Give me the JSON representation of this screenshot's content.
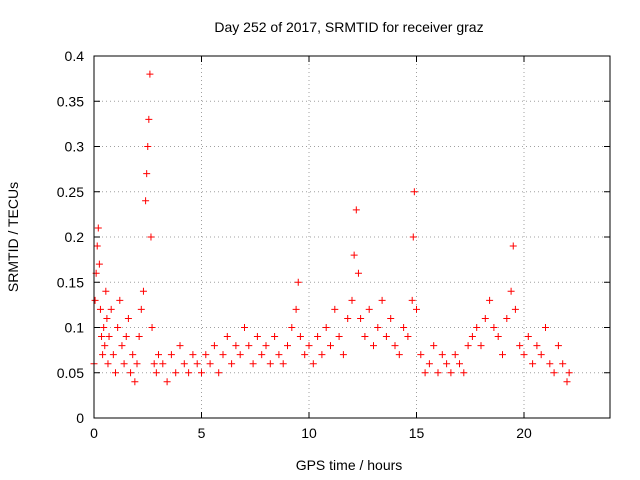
{
  "chart_data": {
    "type": "scatter",
    "title": "Day 252 of 2017, SRMTID for receiver graz",
    "xlabel": "GPS time / hours",
    "ylabel": "SRMTID / TECUs",
    "xlim": [
      0,
      24
    ],
    "ylim": [
      0,
      0.4
    ],
    "xticks": [
      0,
      5,
      10,
      15,
      20
    ],
    "xtick_labels": [
      "0",
      "5",
      "10",
      "15",
      "20"
    ],
    "yticks": [
      0,
      0.05,
      0.1,
      0.15,
      0.2,
      0.25,
      0.3,
      0.35,
      0.4
    ],
    "ytick_labels": [
      "0",
      "0.05",
      "0.1",
      "0.15",
      "0.2",
      "0.25",
      "0.3",
      "0.35",
      "0.4"
    ],
    "grid": true,
    "marker": "+",
    "color": "#ff0000",
    "series": [
      {
        "name": "SRMTID",
        "x": [
          0.0,
          0.05,
          0.1,
          0.15,
          0.2,
          0.25,
          0.3,
          0.35,
          0.4,
          0.45,
          0.5,
          0.55,
          0.6,
          0.65,
          0.7,
          0.8,
          0.9,
          1.0,
          1.1,
          1.2,
          1.3,
          1.4,
          1.5,
          1.6,
          1.7,
          1.8,
          1.9,
          2.0,
          2.1,
          2.2,
          2.3,
          2.4,
          2.45,
          2.5,
          2.55,
          2.6,
          2.65,
          2.7,
          2.8,
          2.9,
          3.0,
          3.2,
          3.4,
          3.6,
          3.8,
          4.0,
          4.2,
          4.4,
          4.6,
          4.8,
          5.0,
          5.2,
          5.4,
          5.6,
          5.8,
          6.0,
          6.2,
          6.4,
          6.6,
          6.8,
          7.0,
          7.2,
          7.4,
          7.6,
          7.8,
          8.0,
          8.2,
          8.4,
          8.6,
          8.8,
          9.0,
          9.2,
          9.4,
          9.5,
          9.6,
          9.8,
          10.0,
          10.2,
          10.4,
          10.6,
          10.8,
          11.0,
          11.2,
          11.4,
          11.6,
          11.8,
          12.0,
          12.1,
          12.2,
          12.3,
          12.4,
          12.6,
          12.8,
          13.0,
          13.2,
          13.4,
          13.6,
          13.8,
          14.0,
          14.2,
          14.4,
          14.6,
          14.8,
          14.85,
          14.9,
          15.0,
          15.2,
          15.4,
          15.6,
          15.8,
          16.0,
          16.2,
          16.4,
          16.6,
          16.8,
          17.0,
          17.2,
          17.4,
          17.6,
          17.8,
          18.0,
          18.2,
          18.4,
          18.6,
          18.8,
          19.0,
          19.2,
          19.4,
          19.5,
          19.6,
          19.8,
          20.0,
          20.2,
          20.4,
          20.6,
          20.8,
          21.0,
          21.2,
          21.4,
          21.6,
          21.8,
          22.0,
          22.1
        ],
        "y": [
          0.06,
          0.13,
          0.16,
          0.19,
          0.21,
          0.17,
          0.12,
          0.09,
          0.07,
          0.1,
          0.08,
          0.14,
          0.11,
          0.06,
          0.09,
          0.12,
          0.07,
          0.05,
          0.1,
          0.13,
          0.08,
          0.06,
          0.09,
          0.11,
          0.05,
          0.07,
          0.04,
          0.06,
          0.09,
          0.12,
          0.14,
          0.24,
          0.27,
          0.3,
          0.33,
          0.38,
          0.2,
          0.1,
          0.06,
          0.05,
          0.07,
          0.06,
          0.04,
          0.07,
          0.05,
          0.08,
          0.06,
          0.05,
          0.07,
          0.06,
          0.05,
          0.07,
          0.06,
          0.08,
          0.05,
          0.07,
          0.09,
          0.06,
          0.08,
          0.07,
          0.1,
          0.08,
          0.06,
          0.09,
          0.07,
          0.08,
          0.06,
          0.09,
          0.07,
          0.06,
          0.08,
          0.1,
          0.12,
          0.15,
          0.09,
          0.07,
          0.08,
          0.06,
          0.09,
          0.07,
          0.1,
          0.08,
          0.12,
          0.09,
          0.07,
          0.11,
          0.13,
          0.18,
          0.23,
          0.16,
          0.11,
          0.09,
          0.12,
          0.08,
          0.1,
          0.13,
          0.09,
          0.11,
          0.08,
          0.07,
          0.1,
          0.09,
          0.13,
          0.2,
          0.25,
          0.12,
          0.07,
          0.05,
          0.06,
          0.08,
          0.05,
          0.07,
          0.06,
          0.05,
          0.07,
          0.06,
          0.05,
          0.08,
          0.09,
          0.1,
          0.08,
          0.11,
          0.13,
          0.1,
          0.09,
          0.07,
          0.11,
          0.14,
          0.19,
          0.12,
          0.08,
          0.07,
          0.09,
          0.06,
          0.08,
          0.07,
          0.1,
          0.06,
          0.05,
          0.08,
          0.06,
          0.04,
          0.05
        ]
      }
    ]
  }
}
